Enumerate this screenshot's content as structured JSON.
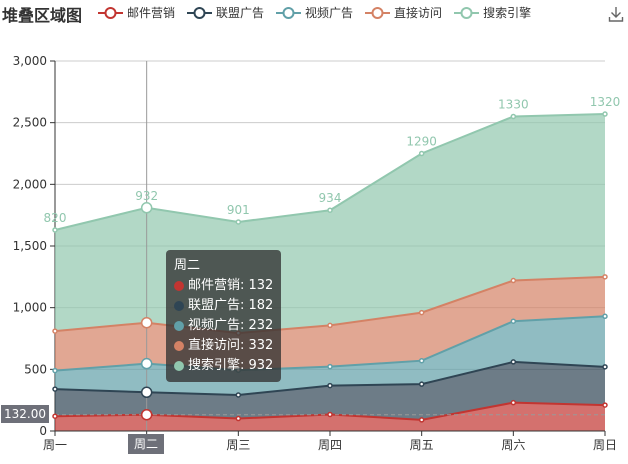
{
  "title": "堆叠区域图",
  "legend": [
    {
      "name": "邮件营销",
      "color": "#c23531"
    },
    {
      "name": "联盟广告",
      "color": "#2f4554"
    },
    {
      "name": "视频广告",
      "color": "#61a0a8"
    },
    {
      "name": "直接访问",
      "color": "#d48265"
    },
    {
      "name": "搜索引擎",
      "color": "#91c7ae"
    }
  ],
  "tooltip": {
    "title": "周二",
    "rows": [
      {
        "label": "邮件营销: 132",
        "color": "#c23531"
      },
      {
        "label": "联盟广告: 182",
        "color": "#2f4554"
      },
      {
        "label": "视频广告: 232",
        "color": "#61a0a8"
      },
      {
        "label": "直接访问: 332",
        "color": "#d48265"
      },
      {
        "label": "搜索引擎: 932",
        "color": "#91c7ae"
      }
    ]
  },
  "axis_pointer": {
    "y_label": "132.00",
    "x_label": "周二"
  },
  "chart_data": {
    "type": "area",
    "stacked": true,
    "title": "堆叠区域图",
    "categories": [
      "周一",
      "周二",
      "周三",
      "周四",
      "周五",
      "周六",
      "周日"
    ],
    "ylim": [
      0,
      3000
    ],
    "yticks": [
      0,
      500,
      1000,
      1500,
      2000,
      2500,
      3000
    ],
    "ytick_labels": [
      "0",
      "500",
      "1,000",
      "1,500",
      "2,000",
      "2,500",
      "3,000"
    ],
    "grid": true,
    "legend_position": "top",
    "series": [
      {
        "name": "邮件营销",
        "color": "#c23531",
        "values": [
          120,
          132,
          101,
          134,
          90,
          230,
          210
        ]
      },
      {
        "name": "联盟广告",
        "color": "#2f4554",
        "values": [
          220,
          182,
          191,
          234,
          290,
          330,
          310
        ]
      },
      {
        "name": "视频广告",
        "color": "#61a0a8",
        "values": [
          150,
          232,
          201,
          154,
          190,
          330,
          410
        ]
      },
      {
        "name": "直接访问",
        "color": "#d48265",
        "values": [
          320,
          332,
          301,
          334,
          390,
          330,
          320
        ]
      },
      {
        "name": "搜索引擎",
        "color": "#91c7ae",
        "values": [
          820,
          932,
          901,
          934,
          1290,
          1330,
          1320
        ]
      }
    ],
    "top_labels": [
      "820",
      "932",
      "901",
      "934",
      "1290",
      "1330",
      "1320"
    ]
  }
}
